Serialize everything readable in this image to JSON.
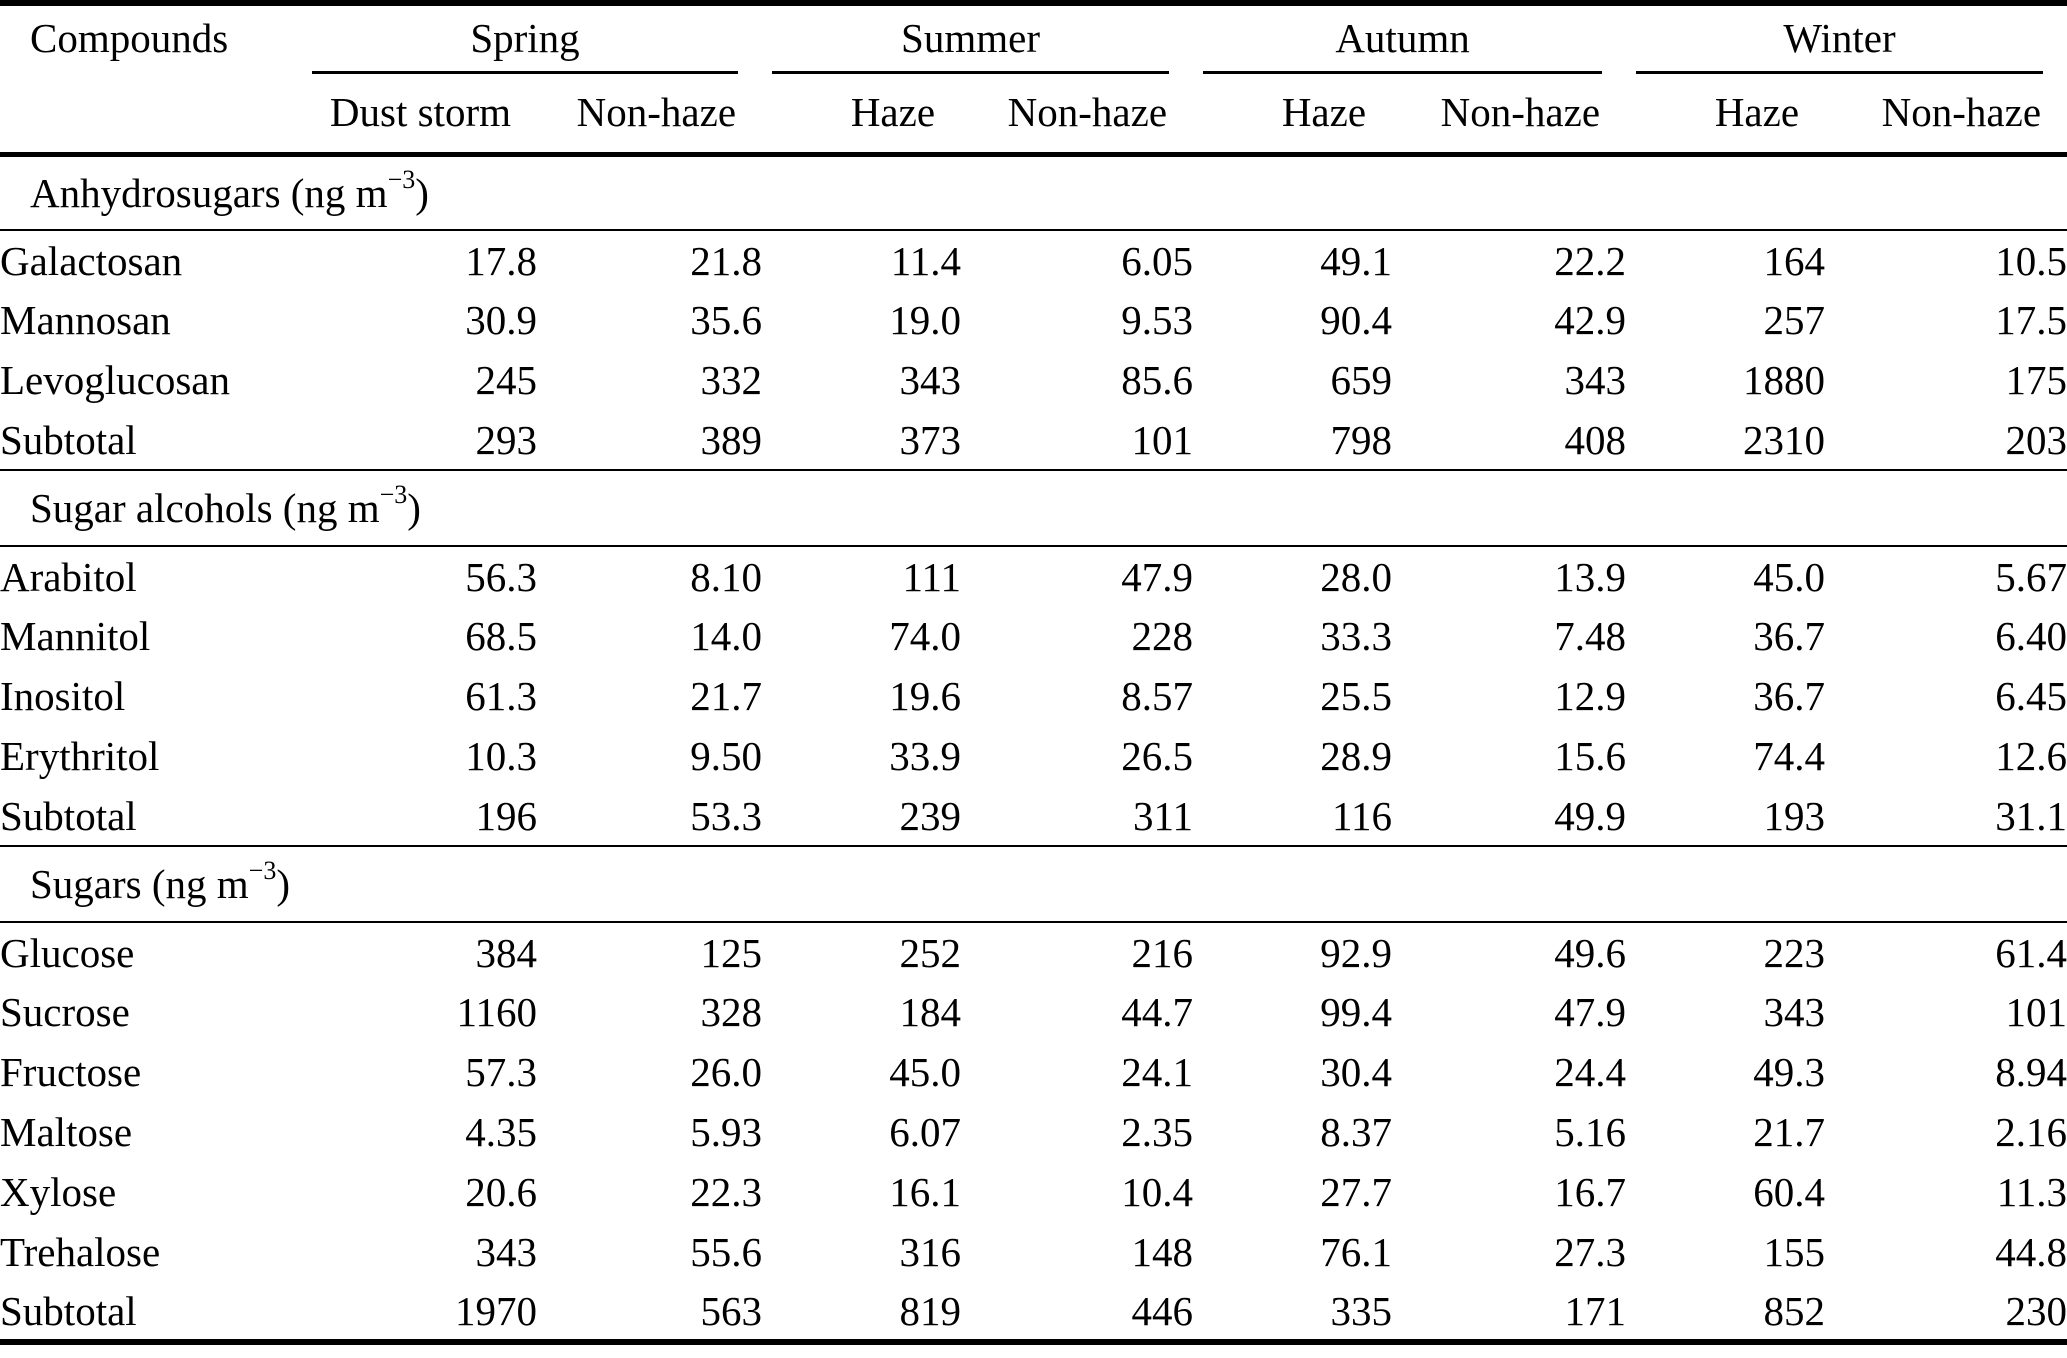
{
  "header": {
    "compounds_label": "Compounds",
    "season_groups": [
      {
        "label": "Spring",
        "subcols": [
          "Dust storm",
          "Non-haze"
        ]
      },
      {
        "label": "Summer",
        "subcols": [
          "Haze",
          "Non-haze"
        ]
      },
      {
        "label": "Autumn",
        "subcols": [
          "Haze",
          "Non-haze"
        ]
      },
      {
        "label": "Winter",
        "subcols": [
          "Haze",
          "Non-haze"
        ]
      }
    ]
  },
  "sections": [
    {
      "title": "Anhydrosugars",
      "unit_prefix": "(ng m",
      "unit_exponent": "−3",
      "unit_suffix": ")",
      "rows": [
        {
          "compound": "Galactosan",
          "values": [
            "17.8",
            "21.8",
            "11.4",
            "6.05",
            "49.1",
            "22.2",
            "164",
            "10.5"
          ]
        },
        {
          "compound": "Mannosan",
          "values": [
            "30.9",
            "35.6",
            "19.0",
            "9.53",
            "90.4",
            "42.9",
            "257",
            "17.5"
          ]
        },
        {
          "compound": "Levoglucosan",
          "values": [
            "245",
            "332",
            "343",
            "85.6",
            "659",
            "343",
            "1880",
            "175"
          ]
        },
        {
          "compound": "Subtotal",
          "values": [
            "293",
            "389",
            "373",
            "101",
            "798",
            "408",
            "2310",
            "203"
          ]
        }
      ]
    },
    {
      "title": "Sugar alcohols",
      "unit_prefix": "(ng m",
      "unit_exponent": "−3",
      "unit_suffix": ")",
      "rows": [
        {
          "compound": "Arabitol",
          "values": [
            "56.3",
            "8.10",
            "111",
            "47.9",
            "28.0",
            "13.9",
            "45.0",
            "5.67"
          ]
        },
        {
          "compound": "Mannitol",
          "values": [
            "68.5",
            "14.0",
            "74.0",
            "228",
            "33.3",
            "7.48",
            "36.7",
            "6.40"
          ]
        },
        {
          "compound": "Inositol",
          "values": [
            "61.3",
            "21.7",
            "19.6",
            "8.57",
            "25.5",
            "12.9",
            "36.7",
            "6.45"
          ]
        },
        {
          "compound": "Erythritol",
          "values": [
            "10.3",
            "9.50",
            "33.9",
            "26.5",
            "28.9",
            "15.6",
            "74.4",
            "12.6"
          ]
        },
        {
          "compound": "Subtotal",
          "values": [
            "196",
            "53.3",
            "239",
            "311",
            "116",
            "49.9",
            "193",
            "31.1"
          ]
        }
      ]
    },
    {
      "title": "Sugars",
      "unit_prefix": "(ng m",
      "unit_exponent": "−3",
      "unit_suffix": ")",
      "rows": [
        {
          "compound": "Glucose",
          "values": [
            "384",
            "125",
            "252",
            "216",
            "92.9",
            "49.6",
            "223",
            "61.4"
          ]
        },
        {
          "compound": "Sucrose",
          "values": [
            "1160",
            "328",
            "184",
            "44.7",
            "99.4",
            "47.9",
            "343",
            "101"
          ]
        },
        {
          "compound": "Fructose",
          "values": [
            "57.3",
            "26.0",
            "45.0",
            "24.1",
            "30.4",
            "24.4",
            "49.3",
            "8.94"
          ]
        },
        {
          "compound": "Maltose",
          "values": [
            "4.35",
            "5.93",
            "6.07",
            "2.35",
            "8.37",
            "5.16",
            "21.7",
            "2.16"
          ]
        },
        {
          "compound": "Xylose",
          "values": [
            "20.6",
            "22.3",
            "16.1",
            "10.4",
            "27.7",
            "16.7",
            "60.4",
            "11.3"
          ]
        },
        {
          "compound": "Trehalose",
          "values": [
            "343",
            "55.6",
            "316",
            "148",
            "76.1",
            "27.3",
            "155",
            "44.8"
          ]
        },
        {
          "compound": "Subtotal",
          "values": [
            "1970",
            "563",
            "819",
            "446",
            "335",
            "171",
            "852",
            "230"
          ]
        }
      ]
    }
  ]
}
